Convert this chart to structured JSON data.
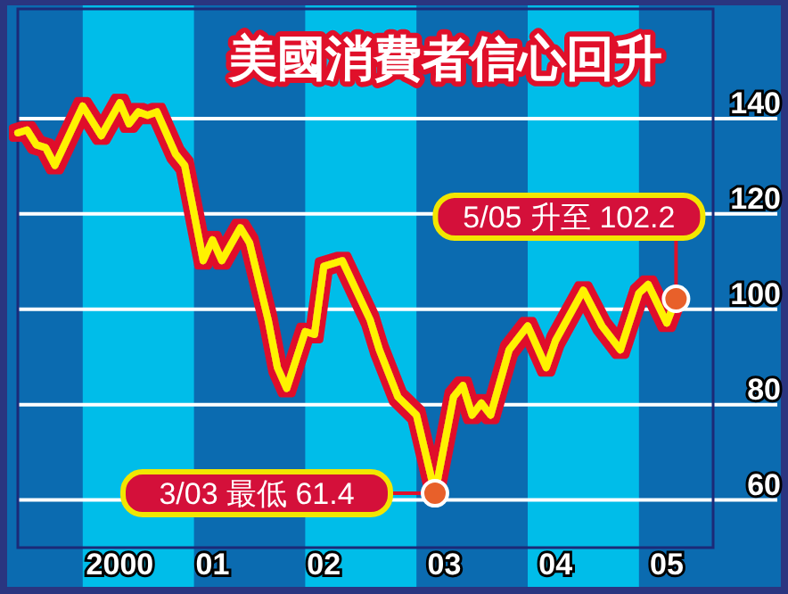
{
  "chart_data": {
    "type": "line",
    "title": "美國消費者信心回升",
    "x": [
      "1999-06",
      "1999-07",
      "1999-08",
      "1999-09",
      "1999-10",
      "2000-01",
      "2000-03",
      "2000-05",
      "2000-06",
      "2000-07",
      "2000-08",
      "2000-09",
      "2000-11",
      "2000-12",
      "2001-01",
      "2001-02",
      "2001-03",
      "2001-04",
      "2001-06",
      "2001-07",
      "2001-09",
      "2001-10",
      "2001-11",
      "2002-01",
      "2002-02",
      "2002-03",
      "2002-05",
      "2002-08",
      "2002-09",
      "2002-11",
      "2003-01",
      "2003-03",
      "2003-05",
      "2003-06",
      "2003-07",
      "2003-08",
      "2003-09",
      "2003-11",
      "2004-01",
      "2004-03",
      "2004-04",
      "2004-07",
      "2004-09",
      "2004-11",
      "2005-01",
      "2005-02",
      "2005-04",
      "2005-05"
    ],
    "series": [
      {
        "color": "#fff200",
        "values": [
          137,
          137.6,
          134.5,
          133.9,
          130.2,
          142.6,
          136.4,
          143.3,
          138.9,
          141.4,
          140.7,
          141.4,
          132.6,
          130.2,
          120.2,
          110.2,
          114.6,
          110.2,
          117.1,
          113.9,
          97.8,
          87.8,
          83.4,
          95.3,
          94.7,
          109,
          110.2,
          97.8,
          91.5,
          81.6,
          77.8,
          61.4,
          81.6,
          84,
          77.8,
          80.3,
          77.8,
          91.5,
          96.5,
          87.8,
          93.4,
          104,
          96.5,
          91.5,
          103.4,
          105.2,
          97.1,
          102.2
        ]
      }
    ],
    "xlim": [
      "1999-06",
      "2005-09"
    ],
    "ylim": [
      50,
      163
    ],
    "yticks": [
      60,
      80,
      100,
      120,
      140
    ],
    "xticks": [
      {
        "value": "2000-05",
        "label": "2000"
      },
      {
        "value": "2001-03",
        "label": "01"
      },
      {
        "value": "2002-03",
        "label": "02"
      },
      {
        "value": "2003-04",
        "label": "03"
      },
      {
        "value": "2004-04",
        "label": "04"
      },
      {
        "value": "2005-04",
        "label": "05"
      }
    ],
    "grid": "y",
    "bands": [
      {
        "axis": "x",
        "from": "2000-01",
        "to": "2001-01",
        "color": "#00bde9"
      },
      {
        "axis": "x",
        "from": "2002-01",
        "to": "2003-01",
        "color": "#00bde9"
      },
      {
        "axis": "x",
        "from": "2004-01",
        "to": "2005-01",
        "color": "#00bde9"
      }
    ],
    "annotations": [
      {
        "text": "3/03 最低 61.4",
        "x": "2003-03",
        "y": 61.4
      },
      {
        "text": "5/05 升至 102.2",
        "x": "2005-05",
        "y": 102.2
      }
    ]
  }
}
